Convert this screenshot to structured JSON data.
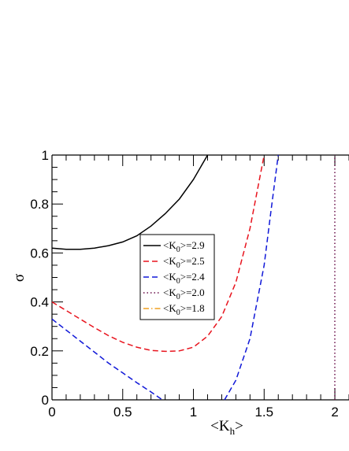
{
  "chart_data": {
    "type": "line",
    "xlabel_main": "<K",
    "xlabel_sub": "h",
    "xlabel_end": ">",
    "ylabel": "σ",
    "xlim": [
      0,
      2.1
    ],
    "ylim": [
      0,
      1
    ],
    "x_ticks": [
      {
        "value": 0,
        "label": "0"
      },
      {
        "value": 0.5,
        "label": "0.5"
      },
      {
        "value": 1,
        "label": "1"
      },
      {
        "value": 1.5,
        "label": "1.5"
      },
      {
        "value": 2,
        "label": "2"
      }
    ],
    "y_ticks": [
      {
        "value": 0,
        "label": "0"
      },
      {
        "value": 0.2,
        "label": "0.2"
      },
      {
        "value": 0.4,
        "label": "0.4"
      },
      {
        "value": 0.6,
        "label": "0.6"
      },
      {
        "value": 0.8,
        "label": "0.8"
      },
      {
        "value": 1,
        "label": "1"
      }
    ],
    "legend_placement": "center",
    "series": [
      {
        "pre": "<K",
        "sub": "0",
        "post": ">=2.9",
        "color": "#000000",
        "dash": "solid",
        "points": [
          [
            0,
            0.62
          ],
          [
            0.1,
            0.615
          ],
          [
            0.2,
            0.615
          ],
          [
            0.3,
            0.62
          ],
          [
            0.4,
            0.63
          ],
          [
            0.5,
            0.645
          ],
          [
            0.6,
            0.67
          ],
          [
            0.7,
            0.71
          ],
          [
            0.8,
            0.76
          ],
          [
            0.9,
            0.82
          ],
          [
            1.0,
            0.9
          ],
          [
            1.1,
            1.0
          ]
        ]
      },
      {
        "pre": "<K",
        "sub": "0",
        "post": ">=2.5",
        "color": "#e8141e",
        "dash": "dashed",
        "points": [
          [
            0,
            0.4
          ],
          [
            0.1,
            0.365
          ],
          [
            0.2,
            0.33
          ],
          [
            0.3,
            0.295
          ],
          [
            0.4,
            0.262
          ],
          [
            0.5,
            0.235
          ],
          [
            0.6,
            0.215
          ],
          [
            0.7,
            0.202
          ],
          [
            0.8,
            0.198
          ],
          [
            0.9,
            0.2
          ],
          [
            1.0,
            0.215
          ],
          [
            1.1,
            0.26
          ],
          [
            1.2,
            0.34
          ],
          [
            1.3,
            0.48
          ],
          [
            1.4,
            0.7
          ],
          [
            1.5,
            1.0
          ]
        ]
      },
      {
        "pre": "<K",
        "sub": "0",
        "post": ">=2.4",
        "color": "#1018d8",
        "dash": "dashed",
        "points_segments": [
          [
            [
              0,
              0.33
            ],
            [
              0.1,
              0.285
            ],
            [
              0.2,
              0.24
            ],
            [
              0.3,
              0.195
            ],
            [
              0.4,
              0.15
            ],
            [
              0.5,
              0.11
            ],
            [
              0.6,
              0.07
            ],
            [
              0.7,
              0.032
            ],
            [
              0.78,
              0.0
            ]
          ],
          [
            [
              1.22,
              0.0
            ],
            [
              1.3,
              0.08
            ],
            [
              1.4,
              0.25
            ],
            [
              1.5,
              0.55
            ],
            [
              1.55,
              0.78
            ],
            [
              1.6,
              1.0
            ]
          ]
        ]
      },
      {
        "pre": "<K",
        "sub": "0",
        "post": ">=2.0",
        "color": "#6a0f4a",
        "dash": "dotted",
        "points": [
          [
            2.0,
            0.0
          ],
          [
            2.0,
            1.0
          ]
        ]
      },
      {
        "pre": "<K",
        "sub": "0",
        "post": ">=1.8",
        "color": "#f0a020",
        "dash": "dashdot",
        "points": []
      }
    ]
  }
}
